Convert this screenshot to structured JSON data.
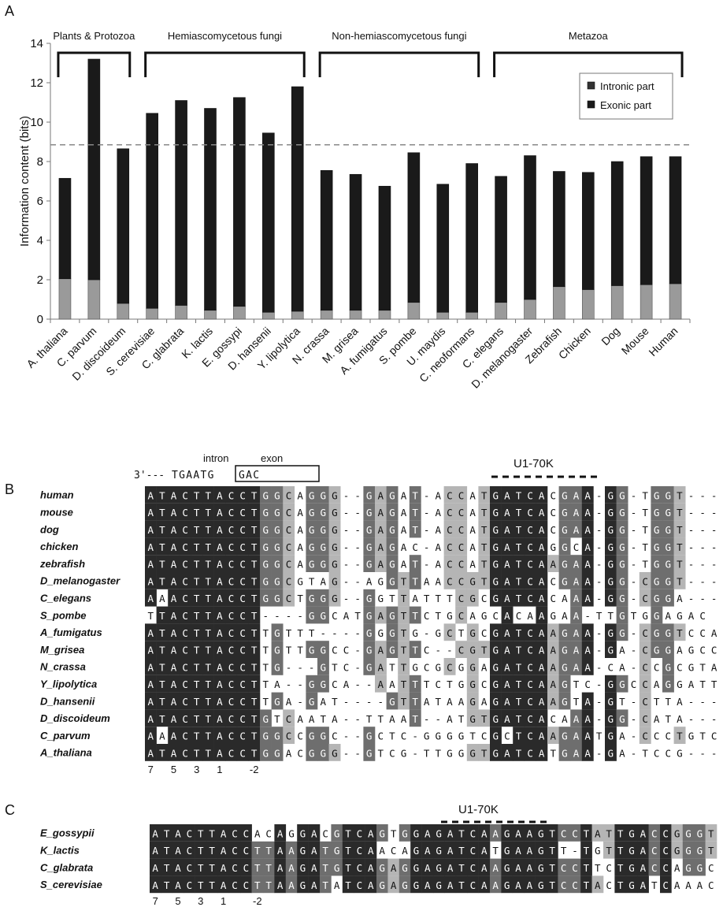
{
  "panels": {
    "a": "A",
    "b": "B",
    "c": "C"
  },
  "chart_data": {
    "type": "bar",
    "stacked": true,
    "categories": [
      "A. thaliana",
      "C. parvum",
      "D. discoideum",
      "S. cerevisiae",
      "C. glabrata",
      "K. lactis",
      "E. gossypi",
      "D. hansenii",
      "Y. lipolytica",
      "N. crassa",
      "M. grisea",
      "A. fumigatus",
      "S. pombe",
      "U. maydis",
      "C. neoformans",
      "C. elegans",
      "D. melanogaster",
      "Zebrafish",
      "Chicken",
      "Dog",
      "Mouse",
      "Human"
    ],
    "series": [
      {
        "name": "Intronic part",
        "color": "#9a9a9a",
        "values": [
          2.05,
          2.0,
          0.8,
          0.55,
          0.7,
          0.45,
          0.65,
          0.35,
          0.4,
          0.45,
          0.45,
          0.45,
          0.85,
          0.35,
          0.35,
          0.85,
          1.0,
          1.65,
          1.5,
          1.7,
          1.75,
          1.8
        ]
      },
      {
        "name": "Exonic part",
        "color": "#1a1a1a",
        "values": [
          5.1,
          11.2,
          7.85,
          9.9,
          10.4,
          10.25,
          10.6,
          9.1,
          11.4,
          7.1,
          6.9,
          6.3,
          7.6,
          6.5,
          7.55,
          6.4,
          7.3,
          5.85,
          5.95,
          6.3,
          6.5,
          6.45
        ]
      }
    ],
    "ylabel": "Information content (bits)",
    "ylim": [
      0,
      14
    ],
    "yticks": [
      0,
      2,
      4,
      6,
      8,
      10,
      12,
      14
    ],
    "reference_line": 8.85,
    "legend_position": "top-right",
    "groups": [
      {
        "label": "Plants & Protozoa",
        "from": 0,
        "to": 2
      },
      {
        "label": "Hemiascomycetous fungi",
        "from": 3,
        "to": 8
      },
      {
        "label": "Non-hemiascomycetous fungi",
        "from": 9,
        "to": 14
      },
      {
        "label": "Metazoa",
        "from": 15,
        "to": 21
      }
    ]
  },
  "alignment_b": {
    "header": {
      "intron_label": "intron",
      "exon_label": "exon",
      "prefix": "3'---",
      "intron_seq": "TGAATG",
      "exon_seq": "GAC"
    },
    "motif_label": "U1-70K",
    "sequences": [
      {
        "name": "human",
        "seq": "ATACTTACCTGGCAGGG--GAGAT-ACCATGATCACGAA-GG-TGGT---"
      },
      {
        "name": "mouse",
        "seq": "ATACTTACCTGGCAGGG--GAGAT-ACCATGATCACGAA-GG-TGGT---"
      },
      {
        "name": "dog",
        "seq": "ATACTTACCTGGCAGGG--GAGAT-ACCATGATCACGAA-GG-TGGT---"
      },
      {
        "name": "chicken",
        "seq": "ATACTTACCTGGCAGGG--GAGAC-ACCATGATCAGGCA-GG-TGGT---"
      },
      {
        "name": "zebrafish",
        "seq": "ATACTTACCTGGCAGGG--GAGAT-ACCATGATCAAGAA-GG-TGGT---"
      },
      {
        "name": "D_melanogaster",
        "seq": "ATACTTACCTGGCGTAG--AGGTTAACCGTGATCACGAA-GG-CGGT---"
      },
      {
        "name": "C_elegans",
        "seq": "AAACTTACCTGGCTGGG--GGTTATTTCGCGATCACAAA-GG-CGGA---"
      },
      {
        "name": "S_pombe",
        "seq": "TTACTTACCT----GGCATGAGTTCTGCAGCACAAGAA-TTGTGGAGAC"
      },
      {
        "name": "A_fumigatus",
        "seq": "ATACTTACCTTGTTT----GGGTG-GCTGCGATCAAGAA-GG-CGGTCCA"
      },
      {
        "name": "M_grisea",
        "seq": "ATACTTACCTTGTTGGCC-GAGTTC--CGTGATCAAGAA-GA-CGGAGCC"
      },
      {
        "name": "N_crassa",
        "seq": "ATACTTACCTTG---GTC-GATTGCGCGGAGATCAAGAA-CA-CCGCGTA"
      },
      {
        "name": "Y_lipolytica",
        "seq": "ATACTTACCTTA--GGCA--AATTTCTGGCGATCAAGTC-GGCCAGGATT"
      },
      {
        "name": "D_hansenii",
        "seq": "ATACTTACCTTGA-GAT----GTTATAAGAGATCAAGTA-GT-CTTA---"
      },
      {
        "name": "D_discoideum",
        "seq": "ATACTTACCTGTCAATA--TTAAT--ATGTGATCACAAA-GG-CATA---"
      },
      {
        "name": "C_parvum",
        "seq": "AAACTTACCTGGCCGGC--GCTC-GGGGTCGCTCAAGAATGA-CCCTGTC"
      },
      {
        "name": "A_thaliana",
        "seq": "ATACTTACCTGGACGGG--GTCG-TTGGGTGATCATGAA-GA-TCCG---"
      }
    ],
    "positions": [
      "7",
      "5",
      "3",
      "1",
      "-2"
    ]
  },
  "alignment_c": {
    "motif_label": "U1-70K",
    "sequences": [
      {
        "name": "E_gossypii",
        "seq": "ATACTTACCACAGGACGTCAGTGGAGATCAAGAAGTCCTATTGACCGGGT"
      },
      {
        "name": "K_lactis",
        "seq": "ATACTTACCTTAAGATGTCAACAGAGATCATGAAGTT-TGTTGACCGGGT"
      },
      {
        "name": "C_glabrata",
        "seq": "ATACTTACCTTAAGATGTCAGAGGAGATCAAGAAGTCCTTCTGACCAGGC"
      },
      {
        "name": "S_cerevisiae",
        "seq": "ATACTTACCTTAAGATATCAGAGGAGATCAAGAAGTCCTACTGATCAAAC"
      }
    ],
    "positions": [
      "7",
      "5",
      "3",
      "1",
      "-2"
    ]
  }
}
